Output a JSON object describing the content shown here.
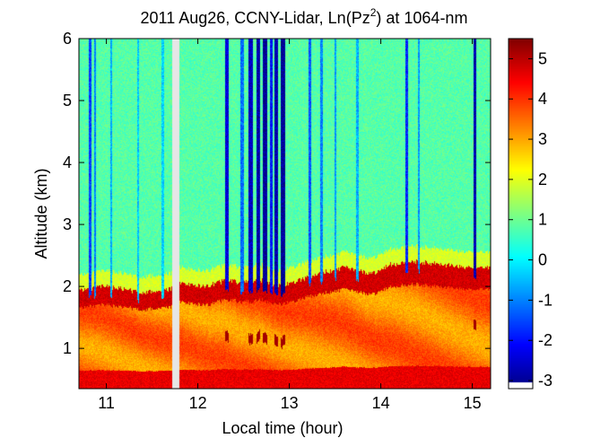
{
  "chart_data": {
    "type": "heatmap",
    "title": "2011 Aug26, CCNY-Lidar, Ln(Pz",
    "title_sup": "2",
    "title_suffix": ") at 1064-nm",
    "xlabel": "Local time (hour)",
    "ylabel": "Altitude (km)",
    "xlim": [
      10.7,
      15.2
    ],
    "ylim": [
      0.35,
      6
    ],
    "xticks": [
      11,
      12,
      13,
      14,
      15
    ],
    "xtick_labels": [
      "11",
      "12",
      "13",
      "14",
      "15"
    ],
    "yticks": [
      1,
      2,
      3,
      4,
      5,
      6
    ],
    "ytick_labels": [
      "1",
      "2",
      "3",
      "4",
      "5",
      "6"
    ],
    "colorbar": {
      "colormap": "jet",
      "clim": [
        -3.2,
        5.5
      ],
      "ticks": [
        -3,
        -2,
        -1,
        0,
        1,
        2,
        3,
        4,
        5
      ],
      "tick_labels": [
        "-3",
        "-2",
        "-1",
        "0",
        "1",
        "2",
        "3",
        "4",
        "5"
      ],
      "no_data_color": "#ffffff"
    },
    "no_data_interval": {
      "x_start": 11.72,
      "x_end": 11.8,
      "color": "#e6e6e6"
    },
    "free_troposphere_value": 0.8,
    "boundary_layer": {
      "top_altitude": [
        [
          10.7,
          1.95
        ],
        [
          11.0,
          2.0
        ],
        [
          11.4,
          1.9
        ],
        [
          11.7,
          1.95
        ],
        [
          11.8,
          2.05
        ],
        [
          12.1,
          2.0
        ],
        [
          12.3,
          2.1
        ],
        [
          12.5,
          2.05
        ],
        [
          12.7,
          2.1
        ],
        [
          12.9,
          2.0
        ],
        [
          13.1,
          2.1
        ],
        [
          13.3,
          2.2
        ],
        [
          13.6,
          2.3
        ],
        [
          13.9,
          2.2
        ],
        [
          14.1,
          2.35
        ],
        [
          14.4,
          2.4
        ],
        [
          14.7,
          2.35
        ],
        [
          15.0,
          2.3
        ],
        [
          15.2,
          2.3
        ]
      ],
      "values": {
        "surface": 4.6,
        "mid": 3.4,
        "top": 4.8
      }
    },
    "cloud_strips": [
      {
        "x": 10.82,
        "width": 0.03,
        "value": -1.6
      },
      {
        "x": 10.88,
        "width": 0.02,
        "value": -1.0
      },
      {
        "x": 11.05,
        "width": 0.02,
        "value": -0.6
      },
      {
        "x": 11.35,
        "width": 0.02,
        "value": -0.4
      },
      {
        "x": 11.62,
        "width": 0.03,
        "value": -0.3
      },
      {
        "x": 12.32,
        "width": 0.04,
        "value": -2.4
      },
      {
        "x": 12.48,
        "width": 0.04,
        "value": -1.2
      },
      {
        "x": 12.58,
        "width": 0.05,
        "value": -2.6
      },
      {
        "x": 12.66,
        "width": 0.04,
        "value": -2.8
      },
      {
        "x": 12.73,
        "width": 0.05,
        "value": -3.0
      },
      {
        "x": 12.8,
        "width": 0.03,
        "value": -2.0
      },
      {
        "x": 12.86,
        "width": 0.04,
        "value": -2.8
      },
      {
        "x": 12.93,
        "width": 0.05,
        "value": -3.0
      },
      {
        "x": 13.22,
        "width": 0.03,
        "value": -1.4
      },
      {
        "x": 13.35,
        "width": 0.03,
        "value": -1.0
      },
      {
        "x": 13.5,
        "width": 0.02,
        "value": -0.8
      },
      {
        "x": 13.74,
        "width": 0.03,
        "value": -0.6
      },
      {
        "x": 14.28,
        "width": 0.03,
        "value": -1.8
      },
      {
        "x": 14.42,
        "width": 0.02,
        "value": -0.8
      },
      {
        "x": 15.03,
        "width": 0.03,
        "value": -2.8
      }
    ]
  }
}
